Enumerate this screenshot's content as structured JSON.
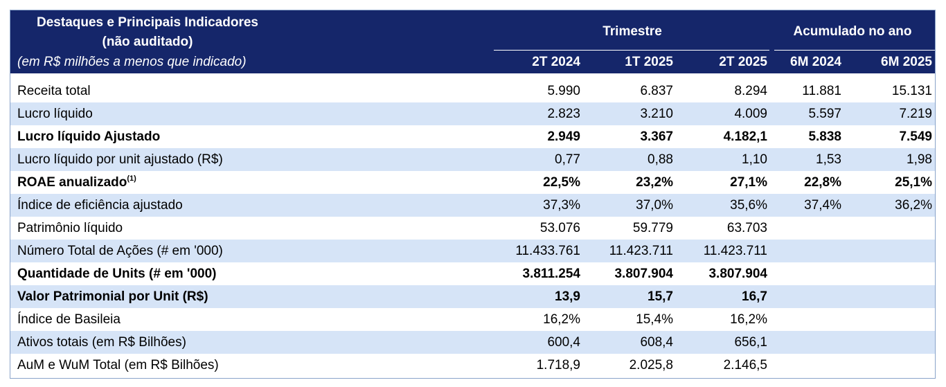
{
  "header": {
    "title_line1": "Destaques e Principais Indicadores",
    "title_line2": "(não auditado)",
    "subtitle": "(em R$ milhões a menos que indicado)",
    "group_trimestre": "Trimestre",
    "group_acumulado": "Acumulado no ano",
    "columns": [
      "2T 2024",
      "1T 2025",
      "2T 2025",
      "6M 2024",
      "6M 2025"
    ],
    "background_color": "#15266a"
  },
  "colors": {
    "header_bg": "#15266a",
    "row_shade": "#d6e4f7",
    "border": "#8aa3c9"
  },
  "rows": [
    {
      "label": "Receita total",
      "sup": "",
      "values": [
        "5.990",
        "6.837",
        "8.294",
        "11.881",
        "15.131"
      ]
    },
    {
      "label": "Lucro líquido",
      "sup": "",
      "values": [
        "2.823",
        "3.210",
        "4.009",
        "5.597",
        "7.219"
      ]
    },
    {
      "label": "Lucro líquido Ajustado",
      "sup": "",
      "values": [
        "2.949",
        "3.367",
        "4.182,1",
        "5.838",
        "7.549"
      ]
    },
    {
      "label": "Lucro líquido por unit ajustado (R$)",
      "sup": "",
      "values": [
        "0,77",
        "0,88",
        "1,10",
        "1,53",
        "1,98"
      ]
    },
    {
      "label": "ROAE anualizado",
      "sup": "(1)",
      "values": [
        "22,5%",
        "23,2%",
        "27,1%",
        "22,8%",
        "25,1%"
      ]
    },
    {
      "label": "Índice de eficiência ajustado",
      "sup": "",
      "values": [
        "37,3%",
        "37,0%",
        "35,6%",
        "37,4%",
        "36,2%"
      ]
    },
    {
      "label": "Patrimônio líquido",
      "sup": "",
      "values": [
        "53.076",
        "59.779",
        "63.703",
        "",
        ""
      ]
    },
    {
      "label": "Número Total de Ações (# em '000)",
      "sup": "",
      "values": [
        "11.433.761",
        "11.423.711",
        "11.423.711",
        "",
        ""
      ]
    },
    {
      "label": "Quantidade de Units (# em '000)",
      "sup": "",
      "values": [
        "3.811.254",
        "3.807.904",
        "3.807.904",
        "",
        ""
      ]
    },
    {
      "label": "Valor Patrimonial por Unit (R$)",
      "sup": "",
      "values": [
        "13,9",
        "15,7",
        "16,7",
        "",
        ""
      ]
    },
    {
      "label": "Índice de Basileia",
      "sup": "",
      "values": [
        "16,2%",
        "15,4%",
        "16,2%",
        "",
        ""
      ]
    },
    {
      "label": "Ativos totais (em R$ Bilhões)",
      "sup": "",
      "values": [
        "600,4",
        "608,4",
        "656,1",
        "",
        ""
      ]
    },
    {
      "label": "AuM e WuM Total (em R$ Bilhões)",
      "sup": "",
      "values": [
        "1.718,9",
        "2.025,8",
        "2.146,5",
        "",
        ""
      ]
    }
  ]
}
